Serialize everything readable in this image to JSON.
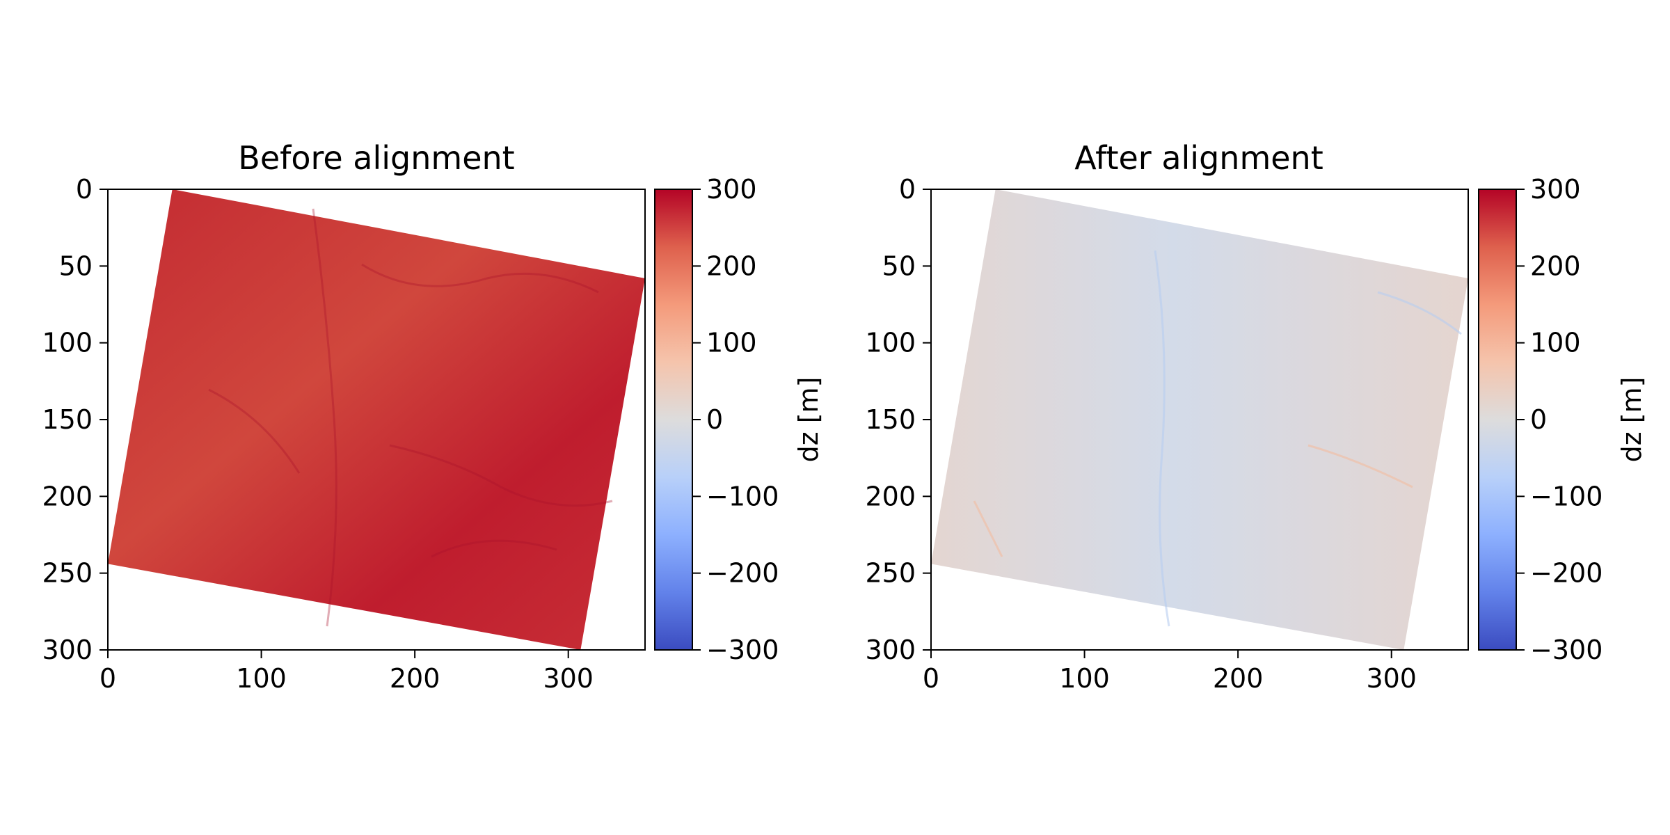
{
  "chart_data": [
    {
      "type": "heatmap",
      "title": "Before alignment",
      "xlabel": "",
      "ylabel": "",
      "xlim": [
        0,
        350
      ],
      "ylim": [
        300,
        0
      ],
      "x_ticks": [
        0,
        100,
        200,
        300
      ],
      "y_ticks": [
        0,
        50,
        100,
        150,
        200,
        250,
        300
      ],
      "footprint": [
        [
          42,
          0
        ],
        [
          352,
          58
        ],
        [
          308,
          300
        ],
        [
          0,
          244
        ]
      ],
      "mean_value": 255,
      "value_range": [
        180,
        300
      ],
      "colormap": "coolwarm",
      "colorbar": {
        "label": "dz [m]",
        "range": [
          -300,
          300
        ],
        "ticks": [
          "300",
          "200",
          "100",
          "0",
          "−100",
          "−200",
          "−300"
        ]
      }
    },
    {
      "type": "heatmap",
      "title": "After alignment",
      "xlabel": "",
      "ylabel": "",
      "xlim": [
        0,
        350
      ],
      "ylim": [
        300,
        0
      ],
      "x_ticks": [
        0,
        100,
        200,
        300
      ],
      "y_ticks": [
        0,
        50,
        100,
        150,
        200,
        250,
        300
      ],
      "footprint": [
        [
          42,
          0
        ],
        [
          352,
          58
        ],
        [
          308,
          300
        ],
        [
          0,
          244
        ]
      ],
      "mean_value": 0,
      "value_range": [
        -30,
        90
      ],
      "colormap": "coolwarm",
      "colorbar": {
        "label": "dz [m]",
        "range": [
          -300,
          300
        ],
        "ticks": [
          "300",
          "200",
          "100",
          "0",
          "−100",
          "−200",
          "−300"
        ]
      }
    }
  ]
}
